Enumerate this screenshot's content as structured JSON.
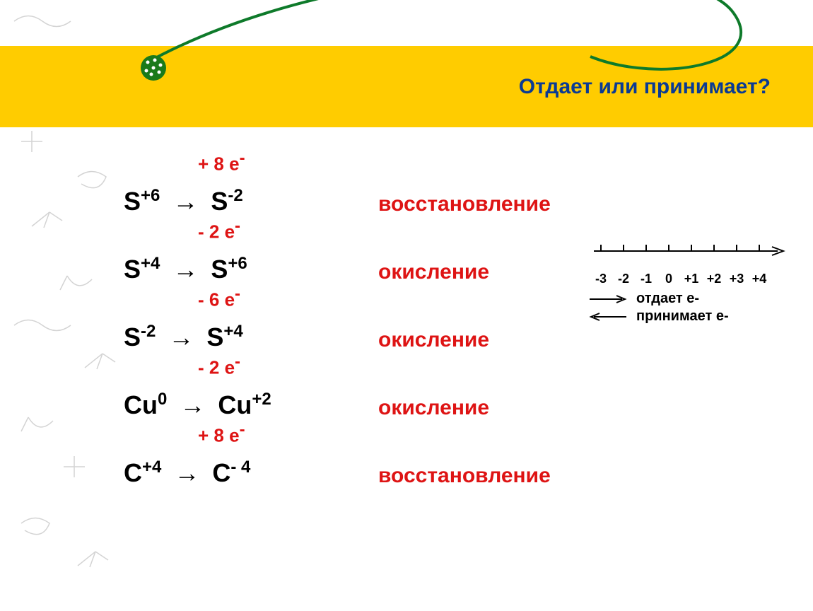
{
  "colors": {
    "band_bg": "#ffcc00",
    "title_color": "#0a3a94",
    "red": "#de1414",
    "black": "#000000",
    "swoosh": "#0e7a2a",
    "ball_fill": "#1a7a1a"
  },
  "title": "Отдает или принимает?",
  "reactions": [
    {
      "left_el": "S",
      "left_sup": "+6",
      "right_el": "S",
      "right_sup": "-2",
      "annot": "+ 8 e",
      "annot_sup": "-",
      "result": "восстановление"
    },
    {
      "left_el": "S",
      "left_sup": "+4",
      "right_el": "S",
      "right_sup": "+6",
      "annot": "- 2 e",
      "annot_sup": "-",
      "result": "окисление"
    },
    {
      "left_el": "S",
      "left_sup": "-2",
      "right_el": "S",
      "right_sup": "+4",
      "annot": "- 6 e",
      "annot_sup": "-",
      "result": "окисление"
    },
    {
      "left_el": "Cu",
      "left_sup": "0",
      "right_el": "Cu",
      "right_sup": "+2",
      "annot": "- 2 e",
      "annot_sup": "-",
      "result": "окисление"
    },
    {
      "left_el": "C",
      "left_sup": "+4",
      "right_el": "C",
      "right_sup": "- 4",
      "annot": "+ 8 e",
      "annot_sup": "-",
      "result": "восстановление"
    }
  ],
  "arrow_glyph": "→",
  "scale": {
    "ticks": [
      "-3",
      "-2",
      "-1",
      "0",
      "+1",
      "+2",
      "+3",
      "+4"
    ],
    "right_label": "отдает   e-",
    "left_label": "принимает e-"
  }
}
